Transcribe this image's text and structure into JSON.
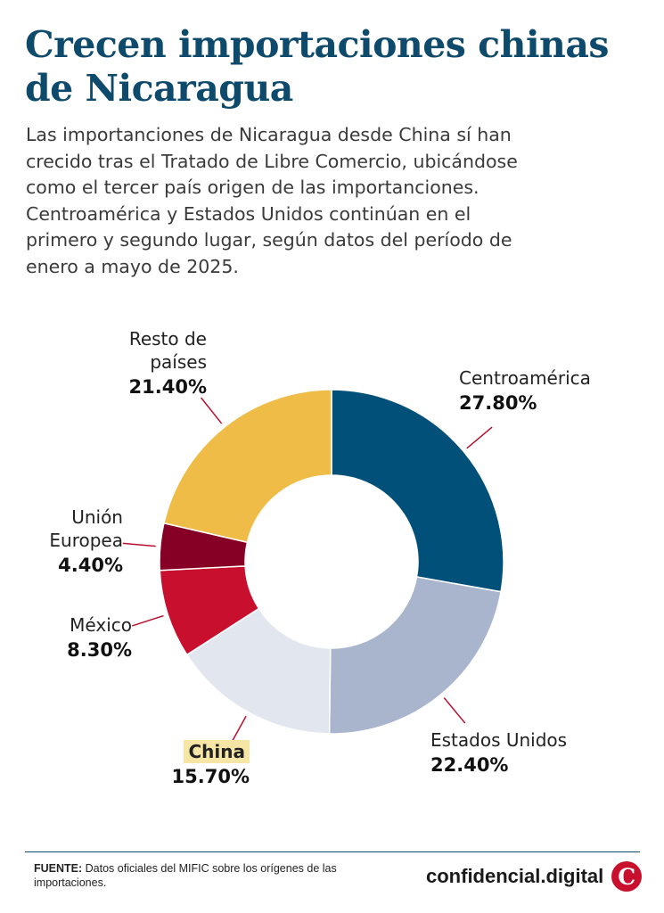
{
  "title": "Crecen importaciones chinas de Nicaragua",
  "subtitle": "Las importanciones de Nicaragua desde China sí han crecido tras el Tratado de Libre Comercio, ubicándose como el tercer país origen de las importanciones. Centroamérica y Estados Unidos continúan en el primero y segundo lugar, según datos del período de enero a mayo de 2025.",
  "chart_data": {
    "type": "pie",
    "variant": "donut",
    "title": "Crecen importaciones chinas de Nicaragua",
    "slices": [
      {
        "label": "Centroamérica",
        "value": 27.8,
        "display": "27.80%",
        "color": "#00507a"
      },
      {
        "label": "Estados Unidos",
        "value": 22.4,
        "display": "22.40%",
        "color": "#a8b5cd"
      },
      {
        "label": "China",
        "value": 15.7,
        "display": "15.70%",
        "color": "#e2e6ee",
        "highlight": true,
        "highlight_color": "#f7e5a6"
      },
      {
        "label": "México",
        "value": 8.3,
        "display": "8.30%",
        "color": "#c8102e"
      },
      {
        "label": "Unión Europea",
        "value": 4.4,
        "display": "4.40%",
        "color": "#850024"
      },
      {
        "label": "Resto de países",
        "value": 21.4,
        "display": "21.40%",
        "color": "#efbc48"
      }
    ],
    "label_lines": [
      "Resto de",
      "países",
      "Unión",
      "Europea"
    ],
    "leader_color": "#b8102e"
  },
  "footer": {
    "source_label": "FUENTE:",
    "source_text": "Datos oficiales del MIFIC sobre los orígenes de las importaciones.",
    "brand": "confidencial.digital",
    "brand_logo": "C"
  }
}
